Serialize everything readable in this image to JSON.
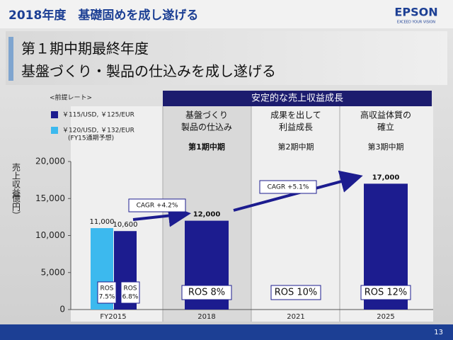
{
  "header": {
    "title": "2018年度　基礎固めを成し遂げる",
    "logo": "EPSON",
    "tagline": "EXCEED YOUR VISION"
  },
  "subtitle_lines": [
    "第１期中期最終年度",
    "基盤づくり・製品の仕込みを成し遂げる"
  ],
  "page_number": "13",
  "chart_data": {
    "type": "bar",
    "y_label": [
      "売上収益",
      "（億円）"
    ],
    "rate_heading": "<前提レート>",
    "categories": [
      "FY2015",
      "2018",
      "2021",
      "2025"
    ],
    "series": [
      {
        "name": "￥115/USD, ￥125/EUR",
        "color": "#1c1c8f",
        "values": [
          10600,
          12000,
          null,
          17000
        ],
        "value_labels": [
          "10,600",
          "12,000",
          null,
          "17,000"
        ]
      },
      {
        "name": "￥120/USD, ￥132/EUR",
        "note": "(FY15通期予想)",
        "color": "#3cb9ee",
        "values": [
          11000,
          null,
          null,
          null
        ],
        "value_labels": [
          "11,000",
          null,
          null,
          null
        ]
      }
    ],
    "ylim": [
      0,
      20000
    ],
    "yticks": [
      0,
      {
        "value": 5000,
        "label": "5,000"
      },
      {
        "value": 10000,
        "label": "10,000"
      },
      {
        "value": 15000,
        "label": "15,000"
      },
      {
        "value": 20000,
        "label": "20,000"
      }
    ],
    "stage_banner": "安定的な売上収益成長",
    "stages": [
      {
        "lines": [
          "基盤づくり",
          "製品の仕込み"
        ],
        "period": "第1期中期"
      },
      {
        "lines": [
          "成果を出して",
          "利益成長"
        ],
        "period": "第2期中期"
      },
      {
        "lines": [
          "高収益体質の",
          "確立"
        ],
        "period": "第3期中期"
      }
    ],
    "annotations": [
      "CAGR +4.2%",
      "CAGR +5.1%"
    ],
    "ros_labels": [
      [
        "ROS",
        "7.5%"
      ],
      [
        "ROS",
        "6.8%"
      ],
      [
        "ROS  8%"
      ],
      [
        "ROS  10%"
      ],
      [
        "ROS  12%"
      ]
    ]
  }
}
